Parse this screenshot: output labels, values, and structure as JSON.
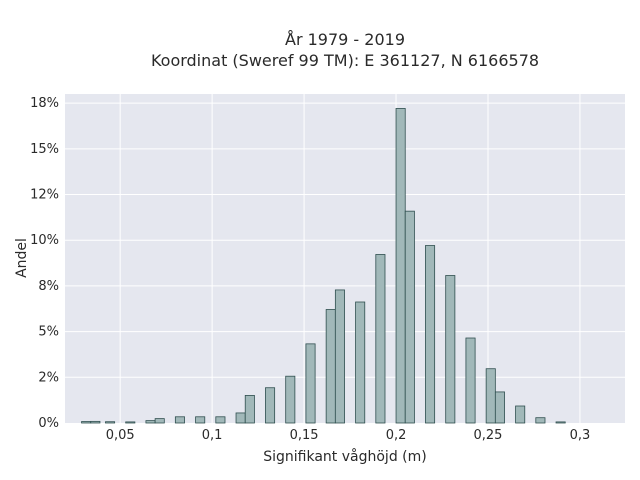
{
  "chart_data": {
    "type": "bar",
    "title_line1": "År 1979 - 2019",
    "title_line2": "Koordinat (Sweref 99 TM): E 361127, N 6166578",
    "xlabel": "Signifikant våghöjd (m)",
    "ylabel": "Andel",
    "xlim": [
      0.02,
      0.3245
    ],
    "ylim": [
      0,
      0.18
    ],
    "grid": true,
    "x_ticks": [
      {
        "value": 0.05,
        "label": "0,05"
      },
      {
        "value": 0.1,
        "label": "0,1"
      },
      {
        "value": 0.15,
        "label": "0,15"
      },
      {
        "value": 0.2,
        "label": "0,2"
      },
      {
        "value": 0.25,
        "label": "0,25"
      },
      {
        "value": 0.3,
        "label": "0,3"
      }
    ],
    "y_ticks": [
      {
        "value": 0,
        "label": "0%"
      },
      {
        "value": 0.025,
        "label": "2%"
      },
      {
        "value": 0.05,
        "label": "5%"
      },
      {
        "value": 0.075,
        "label": "8%"
      },
      {
        "value": 0.1,
        "label": "10%"
      },
      {
        "value": 0.125,
        "label": "12%"
      },
      {
        "value": 0.15,
        "label": "15%"
      },
      {
        "value": 0.175,
        "label": "18%"
      }
    ],
    "bin_width": 0.005,
    "bars": [
      {
        "x": 0.0315,
        "y": 0.0008
      },
      {
        "x": 0.0365,
        "y": 0.0009
      },
      {
        "x": 0.0445,
        "y": 0.0007
      },
      {
        "x": 0.0555,
        "y": 0.0006
      },
      {
        "x": 0.0665,
        "y": 0.0013
      },
      {
        "x": 0.0715,
        "y": 0.0024
      },
      {
        "x": 0.0825,
        "y": 0.0034
      },
      {
        "x": 0.0935,
        "y": 0.0034
      },
      {
        "x": 0.1045,
        "y": 0.0034
      },
      {
        "x": 0.1155,
        "y": 0.0055
      },
      {
        "x": 0.1205,
        "y": 0.0151
      },
      {
        "x": 0.1315,
        "y": 0.0193
      },
      {
        "x": 0.1425,
        "y": 0.0256
      },
      {
        "x": 0.1535,
        "y": 0.0433
      },
      {
        "x": 0.1645,
        "y": 0.0621
      },
      {
        "x": 0.1695,
        "y": 0.0728
      },
      {
        "x": 0.1805,
        "y": 0.0662
      },
      {
        "x": 0.1915,
        "y": 0.0922
      },
      {
        "x": 0.2025,
        "y": 0.1721
      },
      {
        "x": 0.2075,
        "y": 0.1159
      },
      {
        "x": 0.2185,
        "y": 0.0971
      },
      {
        "x": 0.2295,
        "y": 0.0807
      },
      {
        "x": 0.2405,
        "y": 0.0465
      },
      {
        "x": 0.2515,
        "y": 0.0297
      },
      {
        "x": 0.2565,
        "y": 0.017
      },
      {
        "x": 0.2675,
        "y": 0.0093
      },
      {
        "x": 0.2785,
        "y": 0.0029
      },
      {
        "x": 0.2895,
        "y": 0.0006
      }
    ],
    "colors": {
      "bar_fill": "#a1b8b9",
      "bar_stroke": "#2f4f4f",
      "plot_bg": "#e5e7ef",
      "grid": "#ffffff"
    }
  }
}
